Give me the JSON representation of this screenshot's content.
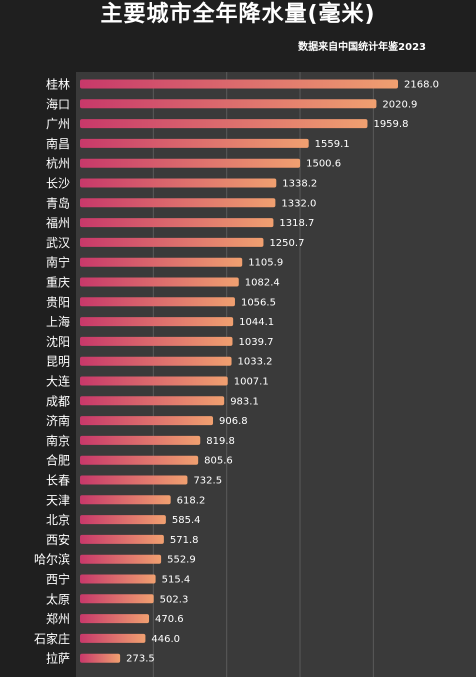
{
  "title": "主要城市全年降水量(毫米)",
  "subtitle": "数据来自中国统计年鉴2023",
  "chart_data": {
    "type": "bar",
    "orientation": "horizontal",
    "title": "主要城市全年降水量(毫米)",
    "xlabel": "",
    "ylabel": "",
    "xlim": [
      0,
      2300
    ],
    "grid": true,
    "categories": [
      "桂林",
      "海口",
      "广州",
      "南昌",
      "杭州",
      "长沙",
      "青岛",
      "福州",
      "武汉",
      "南宁",
      "重庆",
      "贵阳",
      "上海",
      "沈阳",
      "昆明",
      "大连",
      "成都",
      "济南",
      "南京",
      "合肥",
      "长春",
      "天津",
      "北京",
      "西安",
      "哈尔滨",
      "西宁",
      "太原",
      "郑州",
      "石家庄",
      "拉萨"
    ],
    "values": [
      2168.0,
      2020.9,
      1959.8,
      1559.1,
      1500.6,
      1338.2,
      1332.0,
      1318.7,
      1250.7,
      1105.9,
      1082.4,
      1056.5,
      1044.1,
      1039.7,
      1033.2,
      1007.1,
      983.1,
      906.8,
      819.8,
      805.6,
      732.5,
      618.2,
      585.4,
      571.8,
      552.9,
      515.4,
      502.3,
      470.6,
      446.0,
      273.5
    ],
    "value_labels": [
      "2168.0",
      "2020.9",
      "1959.8",
      "1559.1",
      "1500.6",
      "1338.2",
      "1332.0",
      "1318.7",
      "1250.7",
      "1105.9",
      "1082.4",
      "1056.5",
      "1044.1",
      "1039.7",
      "1033.2",
      "1007.1",
      "983.1",
      "906.8",
      "819.8",
      "805.6",
      "732.5",
      "618.2",
      "585.4",
      "571.8",
      "552.9",
      "515.4",
      "502.3",
      "470.6",
      "446.0",
      "273.5"
    ],
    "colors": {
      "bar_start": "#c8386a",
      "bar_end": "#f0a070",
      "plot_bg": "#3a3a3a",
      "grid": "#5a5a5a"
    }
  }
}
